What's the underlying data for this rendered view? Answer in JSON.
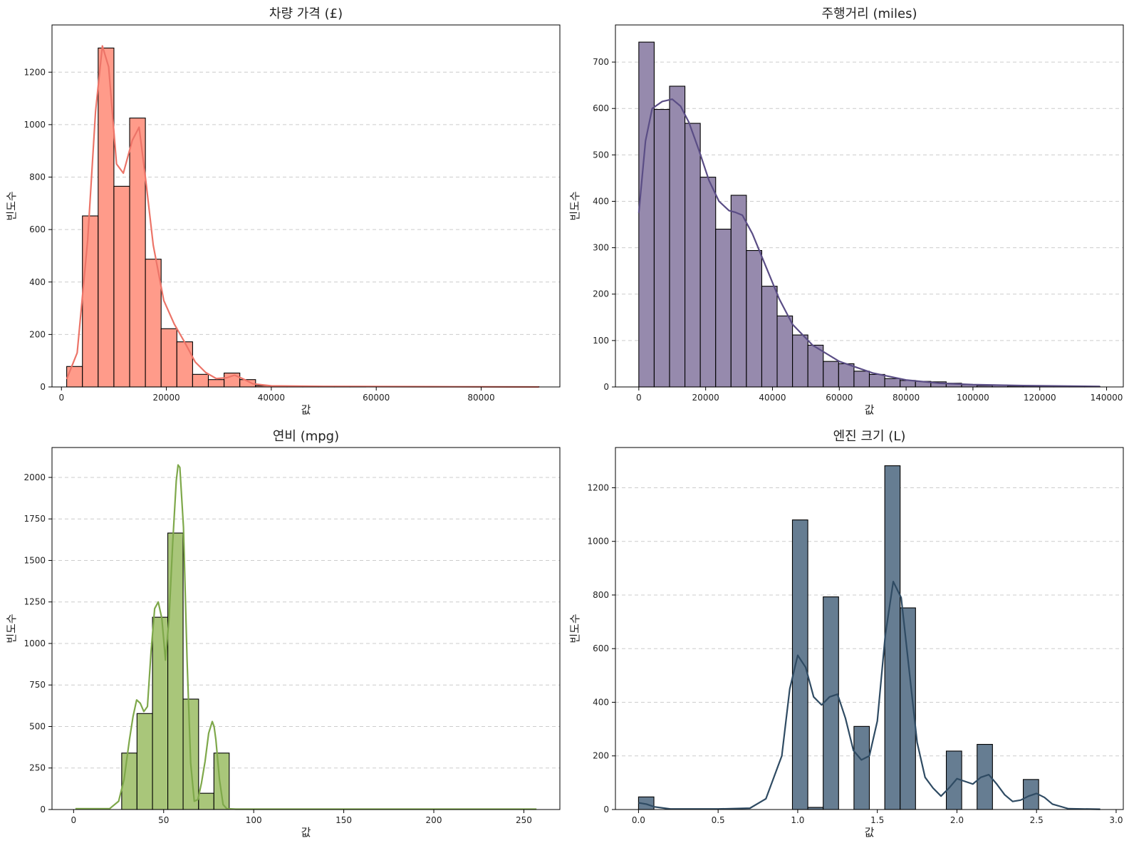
{
  "chart_data": [
    {
      "type": "bar",
      "subtype": "histogram_with_kde",
      "title": "차량 가격 (£)",
      "xlabel": "값",
      "ylabel": "빈도수",
      "xlim": [
        -1800,
        95000
      ],
      "ylim": [
        0,
        1380
      ],
      "xticks": [
        0,
        20000,
        40000,
        60000,
        80000
      ],
      "yticks": [
        0,
        200,
        400,
        600,
        800,
        1000,
        1200
      ],
      "bin_edges": [
        1000,
        4000,
        7000,
        10000,
        13000,
        16000,
        19000,
        22000,
        25000,
        28000,
        31000,
        34000,
        37000,
        40000,
        43000,
        46000,
        49000,
        52000,
        55000,
        58000,
        61000,
        64000,
        67000,
        70000,
        73000,
        76000,
        79000,
        82000,
        85000,
        88000,
        91000
      ],
      "values": [
        78,
        652,
        1292,
        765,
        1025,
        487,
        222,
        172,
        48,
        28,
        53,
        28,
        5,
        3,
        2,
        1,
        1,
        1,
        1,
        0,
        0,
        0,
        0,
        0,
        0,
        0,
        0,
        0,
        0,
        1
      ],
      "kde": {
        "x": [
          1000,
          3000,
          5000,
          6500,
          7800,
          9000,
          10500,
          11800,
          13500,
          14800,
          16000,
          17500,
          19500,
          21500,
          23500,
          25500,
          27500,
          29500,
          31500,
          33000,
          34500,
          36500,
          40000,
          50000,
          70000,
          91000
        ],
        "y": [
          30,
          130,
          560,
          1050,
          1300,
          1220,
          850,
          815,
          940,
          990,
          800,
          540,
          330,
          240,
          170,
          95,
          55,
          32,
          35,
          45,
          32,
          12,
          4,
          2,
          1,
          0
        ]
      },
      "colors": {
        "fill": "#ff9b8a",
        "line": "#ec7468",
        "edge": "#000000"
      },
      "grid": "y-dashed"
    },
    {
      "type": "bar",
      "subtype": "histogram_with_kde",
      "title": "주행거리 (miles)",
      "xlabel": "값",
      "ylabel": "빈도수",
      "xlim": [
        -7000,
        145000
      ],
      "ylim": [
        0,
        780
      ],
      "xticks": [
        0,
        20000,
        40000,
        60000,
        80000,
        100000,
        120000,
        140000
      ],
      "yticks": [
        0,
        100,
        200,
        300,
        400,
        500,
        600,
        700
      ],
      "bin_edges": [
        0,
        4600,
        9200,
        13800,
        18400,
        23000,
        27600,
        32200,
        36800,
        41400,
        46000,
        50600,
        55200,
        59800,
        64400,
        69000,
        73600,
        78200,
        82800,
        87400,
        92000,
        96600,
        101200,
        105800,
        110400,
        115000,
        119600,
        124200,
        128800,
        133400,
        138000
      ],
      "values": [
        743,
        598,
        648,
        568,
        452,
        340,
        413,
        294,
        217,
        153,
        112,
        90,
        55,
        50,
        34,
        27,
        18,
        14,
        12,
        11,
        8,
        5,
        3,
        4,
        2,
        2,
        2,
        1,
        1,
        1
      ],
      "kde": {
        "x": [
          0,
          2000,
          4000,
          7000,
          10000,
          12500,
          15000,
          18000,
          21000,
          24000,
          27000,
          29000,
          31000,
          34000,
          38000,
          42000,
          46000,
          52000,
          60000,
          70000,
          80000,
          90000,
          100000,
          115000,
          138000
        ],
        "y": [
          375,
          530,
          600,
          615,
          620,
          605,
          570,
          510,
          445,
          400,
          380,
          376,
          370,
          330,
          260,
          190,
          135,
          90,
          55,
          30,
          15,
          8,
          5,
          3,
          1
        ]
      },
      "colors": {
        "fill": "#968aad",
        "line": "#5a4d85",
        "edge": "#000000"
      },
      "grid": "y-dashed"
    },
    {
      "type": "bar",
      "subtype": "histogram_with_kde",
      "title": "연비 (mpg)",
      "xlabel": "값",
      "ylabel": "빈도수",
      "xlim": [
        -12,
        270
      ],
      "ylim": [
        0,
        2180
      ],
      "xticks": [
        0,
        50,
        100,
        150,
        200,
        250
      ],
      "yticks": [
        0,
        250,
        500,
        750,
        1000,
        1250,
        1500,
        1750,
        2000
      ],
      "bin_edges": [
        1.1,
        9.6,
        18.2,
        26.7,
        35.2,
        43.8,
        52.3,
        60.8,
        69.4,
        77.9,
        86.4,
        95.0,
        103.5,
        112.0,
        120.6,
        129.1,
        137.6,
        146.2,
        154.7,
        163.2,
        171.8,
        180.3,
        188.8,
        197.4,
        205.9,
        214.4,
        223.0,
        231.5,
        240.0,
        248.6,
        257.1
      ],
      "values": [
        0,
        0,
        0,
        340,
        578,
        1158,
        1665,
        665,
        98,
        340,
        0,
        0,
        0,
        0,
        0,
        0,
        0,
        0,
        0,
        0,
        0,
        0,
        0,
        0,
        0,
        0,
        0,
        0,
        0,
        0
      ],
      "kde": {
        "x": [
          1,
          20,
          25,
          28,
          31,
          33,
          35,
          37,
          39,
          41,
          43,
          45,
          47,
          49,
          51,
          53,
          55,
          57,
          58,
          59,
          61,
          63,
          65,
          67,
          69,
          71,
          73,
          75,
          77,
          78,
          79,
          81,
          83,
          85,
          90,
          100,
          150,
          200,
          257
        ],
        "y": [
          5,
          5,
          50,
          180,
          420,
          560,
          660,
          640,
          590,
          620,
          950,
          1210,
          1250,
          1150,
          900,
          1150,
          1600,
          1980,
          2075,
          2060,
          1700,
          900,
          280,
          50,
          60,
          160,
          290,
          460,
          530,
          500,
          420,
          180,
          30,
          5,
          2,
          2,
          2,
          2,
          2
        ]
      },
      "colors": {
        "fill": "#a9c67a",
        "line": "#7ea84a",
        "edge": "#000000"
      },
      "grid": "y-dashed"
    },
    {
      "type": "bar",
      "subtype": "histogram_with_kde",
      "title": "엔진 크기 (L)",
      "xlabel": "값",
      "ylabel": "빈도수",
      "xlim": [
        -0.145,
        3.045
      ],
      "ylim": [
        0,
        1350
      ],
      "xticks": [
        0.0,
        0.5,
        1.0,
        1.5,
        2.0,
        2.5,
        3.0
      ],
      "xtick_labels": [
        "0.0",
        "0.5",
        "1.0",
        "1.5",
        "2.0",
        "2.5",
        "3.0"
      ],
      "yticks": [
        0,
        200,
        400,
        600,
        800,
        1000,
        1200
      ],
      "bin_edges": [
        0.0,
        0.0967,
        0.1933,
        0.29,
        0.3867,
        0.4833,
        0.58,
        0.6767,
        0.7733,
        0.87,
        0.9667,
        1.0633,
        1.16,
        1.2567,
        1.3533,
        1.45,
        1.5467,
        1.6433,
        1.74,
        1.8367,
        1.9333,
        2.03,
        2.1267,
        2.2233,
        2.32,
        2.4167,
        2.5133,
        2.61,
        2.7067,
        2.8033,
        2.9
      ],
      "values": [
        47,
        0,
        0,
        0,
        0,
        0,
        0,
        0,
        0,
        0,
        1080,
        8,
        793,
        0,
        310,
        0,
        1282,
        752,
        0,
        0,
        218,
        0,
        243,
        0,
        0,
        112,
        0,
        0,
        0,
        0
      ],
      "kde": {
        "x": [
          0.0,
          0.05,
          0.1,
          0.2,
          0.5,
          0.7,
          0.8,
          0.9,
          0.95,
          1.0,
          1.05,
          1.1,
          1.15,
          1.2,
          1.25,
          1.3,
          1.35,
          1.4,
          1.45,
          1.5,
          1.55,
          1.6,
          1.65,
          1.7,
          1.75,
          1.8,
          1.85,
          1.9,
          1.95,
          2.0,
          2.05,
          2.1,
          2.15,
          2.2,
          2.25,
          2.3,
          2.35,
          2.4,
          2.45,
          2.5,
          2.55,
          2.6,
          2.7,
          2.9
        ],
        "y": [
          25,
          20,
          10,
          2,
          2,
          5,
          40,
          200,
          450,
          575,
          530,
          420,
          390,
          420,
          430,
          340,
          220,
          185,
          200,
          330,
          650,
          850,
          790,
          520,
          250,
          120,
          80,
          50,
          80,
          115,
          105,
          95,
          120,
          130,
          95,
          55,
          30,
          35,
          50,
          60,
          45,
          20,
          3,
          1
        ]
      },
      "colors": {
        "fill": "#667d92",
        "line": "#2f4b63",
        "edge": "#000000"
      },
      "grid": "y-dashed"
    }
  ]
}
